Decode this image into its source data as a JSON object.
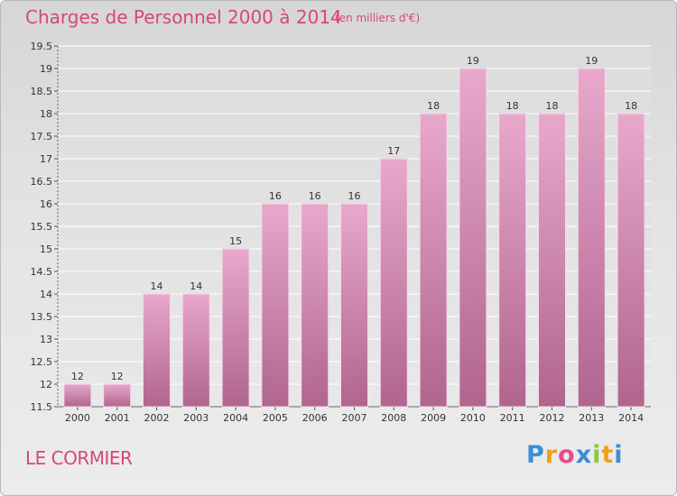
{
  "title": "Charges de Personnel 2000 à 2014",
  "subtitle": "(en milliers d'€)",
  "commune": "LE CORMIER",
  "logo": {
    "letters": [
      "P",
      "r",
      "o",
      "x",
      "i",
      "t",
      "i"
    ],
    "colors": [
      "#3a8fd6",
      "#f0a020",
      "#e94b86",
      "#3a8fd6",
      "#8cc63f",
      "#f0a020",
      "#3a8fd6"
    ]
  },
  "colors": {
    "bar_top": "#e8a8cc",
    "bar_bottom": "#b0658e",
    "accent": "#d6477b"
  },
  "chart_data": {
    "type": "bar",
    "categories": [
      "2000",
      "2001",
      "2002",
      "2003",
      "2004",
      "2005",
      "2006",
      "2007",
      "2008",
      "2009",
      "2010",
      "2011",
      "2012",
      "2013",
      "2014"
    ],
    "values": [
      12,
      12,
      14,
      14,
      15,
      16,
      16,
      16,
      17,
      18,
      19,
      18,
      18,
      19,
      18
    ],
    "value_labels": [
      "12",
      "12",
      "14",
      "14",
      "15",
      "16",
      "16",
      "16",
      "17",
      "18",
      "19",
      "18",
      "18",
      "19",
      "18"
    ],
    "ylim": [
      11.5,
      19.5
    ],
    "yticks": [
      "11.5",
      "12",
      "12.5",
      "13",
      "13.5",
      "14",
      "14.5",
      "15",
      "15.5",
      "16",
      "16.5",
      "17",
      "17.5",
      "18",
      "18.5",
      "19",
      "19.5"
    ],
    "grid": true
  }
}
